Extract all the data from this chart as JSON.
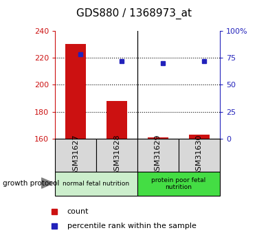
{
  "title": "GDS880 / 1368973_at",
  "samples": [
    "GSM31627",
    "GSM31628",
    "GSM31629",
    "GSM31630"
  ],
  "count_values": [
    230,
    188,
    161,
    163
  ],
  "percentile_values": [
    78,
    72,
    70,
    72
  ],
  "count_baseline": 160,
  "left_ylim": [
    160,
    240
  ],
  "right_ylim": [
    0,
    100
  ],
  "left_yticks": [
    160,
    180,
    200,
    220,
    240
  ],
  "right_yticks": [
    0,
    25,
    50,
    75,
    100
  ],
  "right_yticklabels": [
    "0",
    "25",
    "50",
    "75",
    "100%"
  ],
  "bar_color": "#cc1111",
  "dot_color": "#2222bb",
  "groups": [
    {
      "label": "normal fetal nutrition",
      "samples": [
        0,
        1
      ],
      "color": "#cceecc"
    },
    {
      "label": "protein poor fetal\nnutrition",
      "samples": [
        2,
        3
      ],
      "color": "#44dd44"
    }
  ],
  "group_label": "growth protocol",
  "left_axis_color": "#cc1111",
  "right_axis_color": "#2222bb",
  "background_color": "#ffffff",
  "sample_box_color": "#d8d8d8",
  "grid_yticks": [
    180,
    200,
    220
  ]
}
